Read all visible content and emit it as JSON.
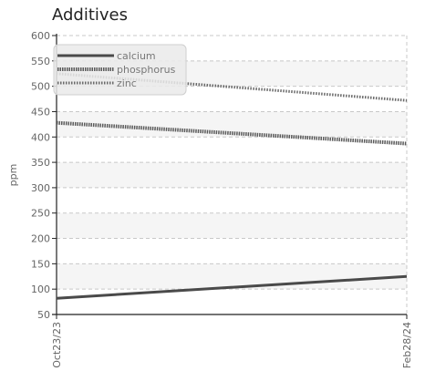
{
  "chart_data": {
    "type": "line",
    "title": "Additives",
    "xlabel": "",
    "ylabel": "ppm",
    "x": [
      "Oct23/23",
      "Feb28/24"
    ],
    "ylim": [
      50,
      600
    ],
    "yticks": [
      50,
      100,
      150,
      200,
      250,
      300,
      350,
      400,
      450,
      500,
      550,
      600
    ],
    "grid": true,
    "legend_position": "top-left",
    "series": [
      {
        "name": "calcium",
        "values": [
          82,
          125
        ],
        "style": "solid"
      },
      {
        "name": "phosphorus",
        "values": [
          428,
          387
        ],
        "style": "dense-dotted"
      },
      {
        "name": "zinc",
        "values": [
          525,
          472
        ],
        "style": "dotted"
      }
    ]
  },
  "colors": {
    "calcium": "#4a4a4a",
    "phosphorus": "#5a5a5a",
    "zinc": "#6a6a6a",
    "grid": "#c8c8c8",
    "band": "#f5f5f5",
    "axis": "#222222",
    "tick_text": "#666666"
  }
}
